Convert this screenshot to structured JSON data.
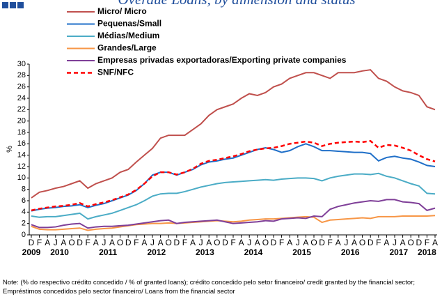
{
  "chart_data": {
    "type": "line",
    "title": "Overdue Loans, by dimension and status",
    "y_label": "%",
    "note": "Note: (% do respectivo crédito concedido / % of granted loans); crédito concedido pelo setor financeiro/ credit granted by the financial sector; Empréstimos concedidos pelo sector financeiro/ Loans from the financial sector",
    "categories": [
      "D",
      "F",
      "A",
      "J",
      "A",
      "O",
      "D",
      "F",
      "A",
      "J",
      "A",
      "O",
      "D",
      "F",
      "A",
      "J",
      "A",
      "O",
      "D",
      "F",
      "A",
      "J",
      "A",
      "O",
      "D",
      "F",
      "A",
      "J",
      "A",
      "O",
      "D",
      "F",
      "A",
      "J",
      "A",
      "O",
      "D",
      "F",
      "A",
      "J",
      "A",
      "O",
      "D",
      "F",
      "A",
      "J",
      "A",
      "O",
      "D",
      "F",
      "A"
    ],
    "year_labels": [
      "2009",
      "2010",
      "2011",
      "2012",
      "2013",
      "2014",
      "2015",
      "2016",
      "2017",
      "2018"
    ],
    "ylim": [
      0,
      30
    ],
    "yticks": [
      0,
      2,
      4,
      6,
      8,
      10,
      12,
      14,
      16,
      18,
      20,
      22,
      24,
      26,
      28,
      30
    ],
    "grid": false,
    "series": [
      {
        "name": "Micro/ Micro",
        "color": "#c0504d",
        "dashed": false,
        "values": [
          6.5,
          7.5,
          7.8,
          8.2,
          8.5,
          9.0,
          9.5,
          8.2,
          9.0,
          9.5,
          10,
          11,
          11.5,
          12.8,
          14,
          15.2,
          17,
          17.5,
          17.5,
          17.5,
          18.5,
          19.5,
          21,
          22,
          22.5,
          23,
          24,
          24.8,
          24.5,
          25,
          26,
          26.5,
          27.5,
          28,
          28.5,
          28.5,
          28,
          27.5,
          28.5,
          28.5,
          28.5,
          28.8,
          29,
          27.5,
          27,
          26,
          25.3,
          25,
          24.5,
          22.5,
          22
        ]
      },
      {
        "name": "Pequenas/Small",
        "color": "#1f6fc8",
        "dashed": false,
        "values": [
          4.2,
          4.5,
          4.7,
          4.8,
          5.0,
          5.1,
          5.3,
          4.8,
          5.2,
          5.5,
          6,
          6.5,
          7,
          7.8,
          9,
          10.5,
          11,
          11,
          10.5,
          11,
          11.5,
          12.3,
          12.8,
          13,
          13.3,
          13.5,
          14,
          14.5,
          15,
          15.3,
          15,
          14.5,
          14.8,
          15.5,
          16,
          15.5,
          14.8,
          14.8,
          14.7,
          14.6,
          14.5,
          14.5,
          14.3,
          13,
          13.6,
          13.8,
          13.5,
          13.3,
          12.8,
          12.2,
          12
        ]
      },
      {
        "name": "Médias/Medium",
        "color": "#4bacc6",
        "dashed": false,
        "values": [
          3.3,
          3.1,
          3.2,
          3.2,
          3.4,
          3.6,
          3.8,
          2.8,
          3.2,
          3.5,
          3.8,
          4.3,
          4.8,
          5.3,
          6,
          6.8,
          7.2,
          7.3,
          7.3,
          7.6,
          8,
          8.4,
          8.7,
          9,
          9.2,
          9.3,
          9.4,
          9.5,
          9.6,
          9.7,
          9.6,
          9.8,
          9.9,
          10,
          10,
          9.9,
          9.5,
          10,
          10.3,
          10.5,
          10.7,
          10.7,
          10.6,
          10.8,
          10.3,
          10,
          9.5,
          9,
          8.6,
          7.3,
          7.2
        ]
      },
      {
        "name": "Grandes/Large",
        "color": "#f79646",
        "dashed": false,
        "values": [
          1.5,
          1.0,
          0.9,
          0.9,
          1.0,
          1.1,
          1.2,
          0.8,
          1.0,
          1.1,
          1.2,
          1.4,
          1.6,
          1.8,
          1.9,
          2.0,
          2.0,
          2.1,
          2.0,
          2.1,
          2.2,
          2.3,
          2.4,
          2.5,
          2.4,
          2.3,
          2.4,
          2.6,
          2.7,
          2.8,
          2.8,
          2.9,
          3.0,
          3.1,
          3.2,
          3.1,
          2.2,
          2.6,
          2.7,
          2.8,
          2.9,
          3.0,
          2.9,
          3.2,
          3.2,
          3.2,
          3.3,
          3.3,
          3.3,
          3.3,
          3.4
        ]
      },
      {
        "name": "Empresas privadas exportadoras/Exporting private companies",
        "color": "#7f3f98",
        "dashed": false,
        "values": [
          1.8,
          1.3,
          1.3,
          1.4,
          1.7,
          1.9,
          2.0,
          1.2,
          1.4,
          1.5,
          1.5,
          1.6,
          1.7,
          1.9,
          2.1,
          2.3,
          2.5,
          2.6,
          2.0,
          2.2,
          2.3,
          2.4,
          2.5,
          2.6,
          2.3,
          2.0,
          2.1,
          2.2,
          2.3,
          2.5,
          2.4,
          2.8,
          2.9,
          3.0,
          2.9,
          3.3,
          3.2,
          4.5,
          5.0,
          5.3,
          5.6,
          5.8,
          6.0,
          5.9,
          6.2,
          6.2,
          5.8,
          5.7,
          5.5,
          4.3,
          4.7
        ]
      },
      {
        "name": "SNF/NFC",
        "color": "#ff0000",
        "dashed": true,
        "values": [
          4.3,
          4.6,
          4.8,
          5.0,
          5.1,
          5.3,
          5.6,
          5.0,
          5.4,
          5.7,
          6.1,
          6.6,
          7.1,
          7.9,
          9,
          10.3,
          11,
          11,
          10.6,
          11,
          11.6,
          12.5,
          13,
          13.2,
          13.5,
          13.8,
          14.2,
          14.7,
          15,
          15.2,
          15.3,
          15.6,
          16,
          16.2,
          16.4,
          16.2,
          15.6,
          16,
          16.2,
          16.3,
          16.4,
          16.3,
          16.5,
          15.3,
          15.8,
          15.7,
          15.3,
          14.8,
          14,
          13.3,
          12.9
        ]
      }
    ]
  }
}
